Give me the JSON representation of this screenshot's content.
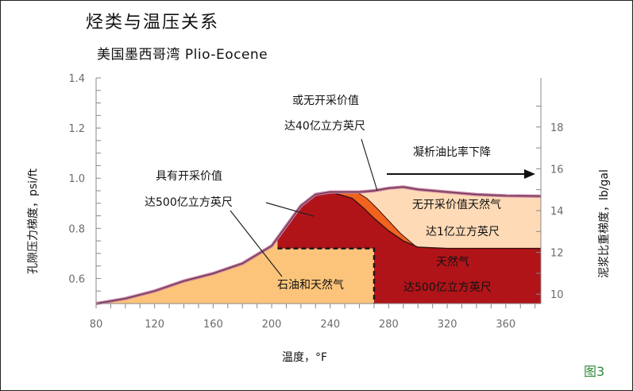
{
  "title": "烃类与温压关系",
  "subtitle": "美国墨西哥湾 Plio-Eocene",
  "figure_label": "图3",
  "colors": {
    "oil_gas": "#fcc47a",
    "gas": "#b01419",
    "uneconomic_gas": "#ffdab6",
    "transition": "#f0641e",
    "envelope": "#c07a9c",
    "axis": "#888888"
  },
  "chart_data": {
    "type": "area",
    "title": "烃类与温压关系",
    "subtitle": "美国墨西哥湾 Plio-Eocene",
    "xlabel": "温度，°F",
    "ylabel_left": "孔隙压力梯度，psi/ft",
    "ylabel_right": "泥浆比重梯度，lb/gal",
    "xlim": [
      80,
      384
    ],
    "ylim_left": [
      0.5,
      1.4
    ],
    "ylim_right": [
      9.55,
      20.35
    ],
    "x_ticks": [
      80,
      120,
      160,
      200,
      240,
      280,
      320,
      360
    ],
    "y_ticks_left": [
      "0.6",
      "0.8",
      "1.0",
      "1.2",
      "1.4"
    ],
    "y_ticks_right": [
      "10",
      "12",
      "14",
      "16",
      "18"
    ],
    "y_ticks_left_values": [
      0.6,
      0.8,
      1.0,
      1.2,
      1.4
    ],
    "y_ticks_right_values": [
      10,
      12,
      14,
      16,
      18
    ],
    "envelope": {
      "x": [
        80,
        100,
        120,
        140,
        160,
        180,
        200,
        210,
        220,
        230,
        240,
        260,
        270,
        280,
        290,
        300,
        320,
        340,
        360,
        384
      ],
      "y": [
        0.5,
        0.52,
        0.55,
        0.59,
        0.62,
        0.66,
        0.73,
        0.81,
        0.89,
        0.935,
        0.945,
        0.945,
        0.95,
        0.96,
        0.965,
        0.955,
        0.945,
        0.935,
        0.93,
        0.928
      ]
    },
    "oil_gas_box": {
      "x": [
        204,
        270
      ],
      "y_top": 0.72
    },
    "gas_boundary": {
      "x": [
        240,
        255,
        263,
        270,
        280,
        290,
        300,
        320,
        384
      ],
      "y": [
        0.945,
        0.92,
        0.88,
        0.84,
        0.79,
        0.75,
        0.725,
        0.72,
        0.72
      ]
    },
    "transition_left": {
      "x": [
        258,
        265,
        272,
        280,
        288,
        298
      ],
      "y": [
        0.945,
        0.92,
        0.88,
        0.83,
        0.78,
        0.73
      ]
    },
    "annotations": [
      {
        "lines": [
          "或无开采价值",
          "达40亿立方英尺"
        ]
      },
      {
        "lines": [
          "具有开采价值",
          "达500亿立方英尺"
        ]
      },
      {
        "lines": [
          "凝析油比率下降"
        ]
      },
      {
        "lines": [
          "无开采价值天然气",
          "达1亿立方英尺"
        ]
      },
      {
        "lines": [
          "天然气",
          "达500亿立方英尺"
        ]
      },
      {
        "lines": [
          "石油和天然气"
        ]
      }
    ]
  }
}
